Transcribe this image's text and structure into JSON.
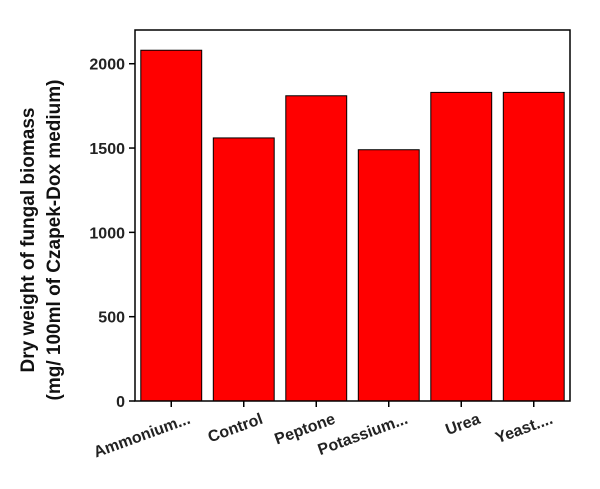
{
  "chart_data": {
    "type": "bar",
    "title": "",
    "xlabel": "",
    "ylabel_line1": "Dry weight of fungal biomass",
    "ylabel_line2": "(mg/ 100ml of Czapek-Dox medium)",
    "categories": [
      "Ammonium...",
      "Control",
      "Peptone",
      "Potassium...",
      "Urea",
      "Yeast...."
    ],
    "values": [
      2080,
      1560,
      1810,
      1490,
      1830,
      1830
    ],
    "ylim": [
      0,
      2200
    ],
    "yticks": [
      0,
      500,
      1000,
      1500,
      2000
    ],
    "grid": false,
    "legend": "none",
    "bar_color": "#ff0000"
  }
}
